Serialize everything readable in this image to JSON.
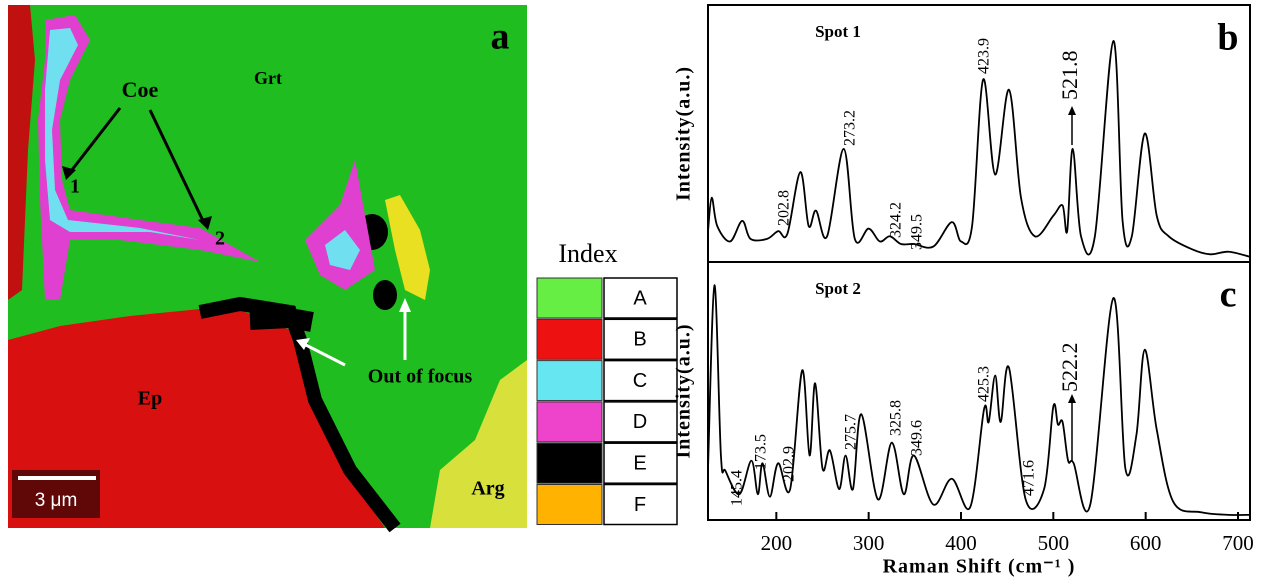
{
  "map": {
    "panel_letter": "a",
    "labels": [
      "Coe",
      "Grt",
      "1",
      "2",
      "Out of focus",
      "Ep",
      "Arg"
    ],
    "scale_bar": "3 μm"
  },
  "index": {
    "title": "Index",
    "entries": [
      {
        "label": "A",
        "color": "#66ee44"
      },
      {
        "label": "B",
        "color": "#ee1111"
      },
      {
        "label": "C",
        "color": "#66e6f0"
      },
      {
        "label": "D",
        "color": "#ee44cc"
      },
      {
        "label": "E",
        "color": "#000000"
      },
      {
        "label": "F",
        "color": "#ffb300"
      }
    ]
  },
  "chart_data": [
    {
      "type": "line",
      "panel_letter": "b",
      "title": "Spot 1",
      "y_label": "Intensity(a.u.)",
      "color": "#000000",
      "xlim": [
        126,
        713
      ],
      "ylim": [
        0,
        100
      ],
      "x": [
        126,
        130,
        136,
        150,
        163,
        172,
        190,
        202,
        212,
        226,
        235,
        243,
        255,
        273,
        285,
        300,
        312,
        323,
        335,
        349,
        370,
        390,
        400,
        412,
        424,
        437,
        452,
        465,
        480,
        500,
        510,
        515,
        521,
        530,
        545,
        565,
        575,
        585,
        599,
        612,
        625,
        650,
        670,
        690,
        713
      ],
      "values": [
        12,
        25,
        14,
        8,
        16,
        9,
        9,
        12,
        11,
        35,
        14,
        20,
        10,
        44,
        9,
        13,
        8,
        10,
        7,
        7,
        6,
        15.5,
        8,
        14,
        71,
        34,
        67,
        25,
        10,
        18,
        22,
        12,
        44,
        10,
        10,
        86,
        16,
        10,
        50,
        18,
        10,
        5,
        3,
        4,
        2
      ],
      "peak_labels": [
        "202.8",
        "273.2",
        "324.2",
        "349.5",
        "423.9",
        "521.8"
      ]
    },
    {
      "type": "line",
      "panel_letter": "c",
      "title": "Spot 2",
      "y_label": "Intensity(a.u.)",
      "color": "#000000",
      "x_label": "Raman Shift (cm⁻¹ )",
      "xlim": [
        126,
        713
      ],
      "ylim": [
        0,
        100
      ],
      "xticks": [
        200,
        300,
        400,
        500,
        600,
        700
      ],
      "x": [
        126,
        133,
        140,
        145,
        160,
        173,
        180,
        185,
        193,
        202,
        215,
        228,
        236,
        242,
        250,
        258,
        268,
        275,
        283,
        292,
        310,
        325,
        338,
        349,
        370,
        390,
        410,
        425,
        430,
        437,
        443,
        452,
        470,
        490,
        500,
        505,
        510,
        516,
        522,
        540,
        565,
        578,
        590,
        599,
        612,
        630,
        660,
        690,
        713
      ],
      "values": [
        20,
        91,
        25,
        19,
        10,
        23,
        10,
        22,
        9,
        22,
        12,
        58,
        25,
        53,
        20,
        27,
        12,
        25,
        12,
        41,
        8,
        30,
        10,
        25,
        6,
        16,
        5,
        43,
        38,
        56,
        38,
        59,
        8,
        12,
        44,
        37,
        38,
        23,
        22,
        6,
        86,
        20,
        33,
        66,
        35,
        7,
        3,
        2,
        2
      ],
      "peak_labels": [
        "145.4",
        "173.5",
        "202.9",
        "275.7",
        "325.8",
        "349.6",
        "425.3",
        "471.6",
        "522.2"
      ]
    }
  ]
}
